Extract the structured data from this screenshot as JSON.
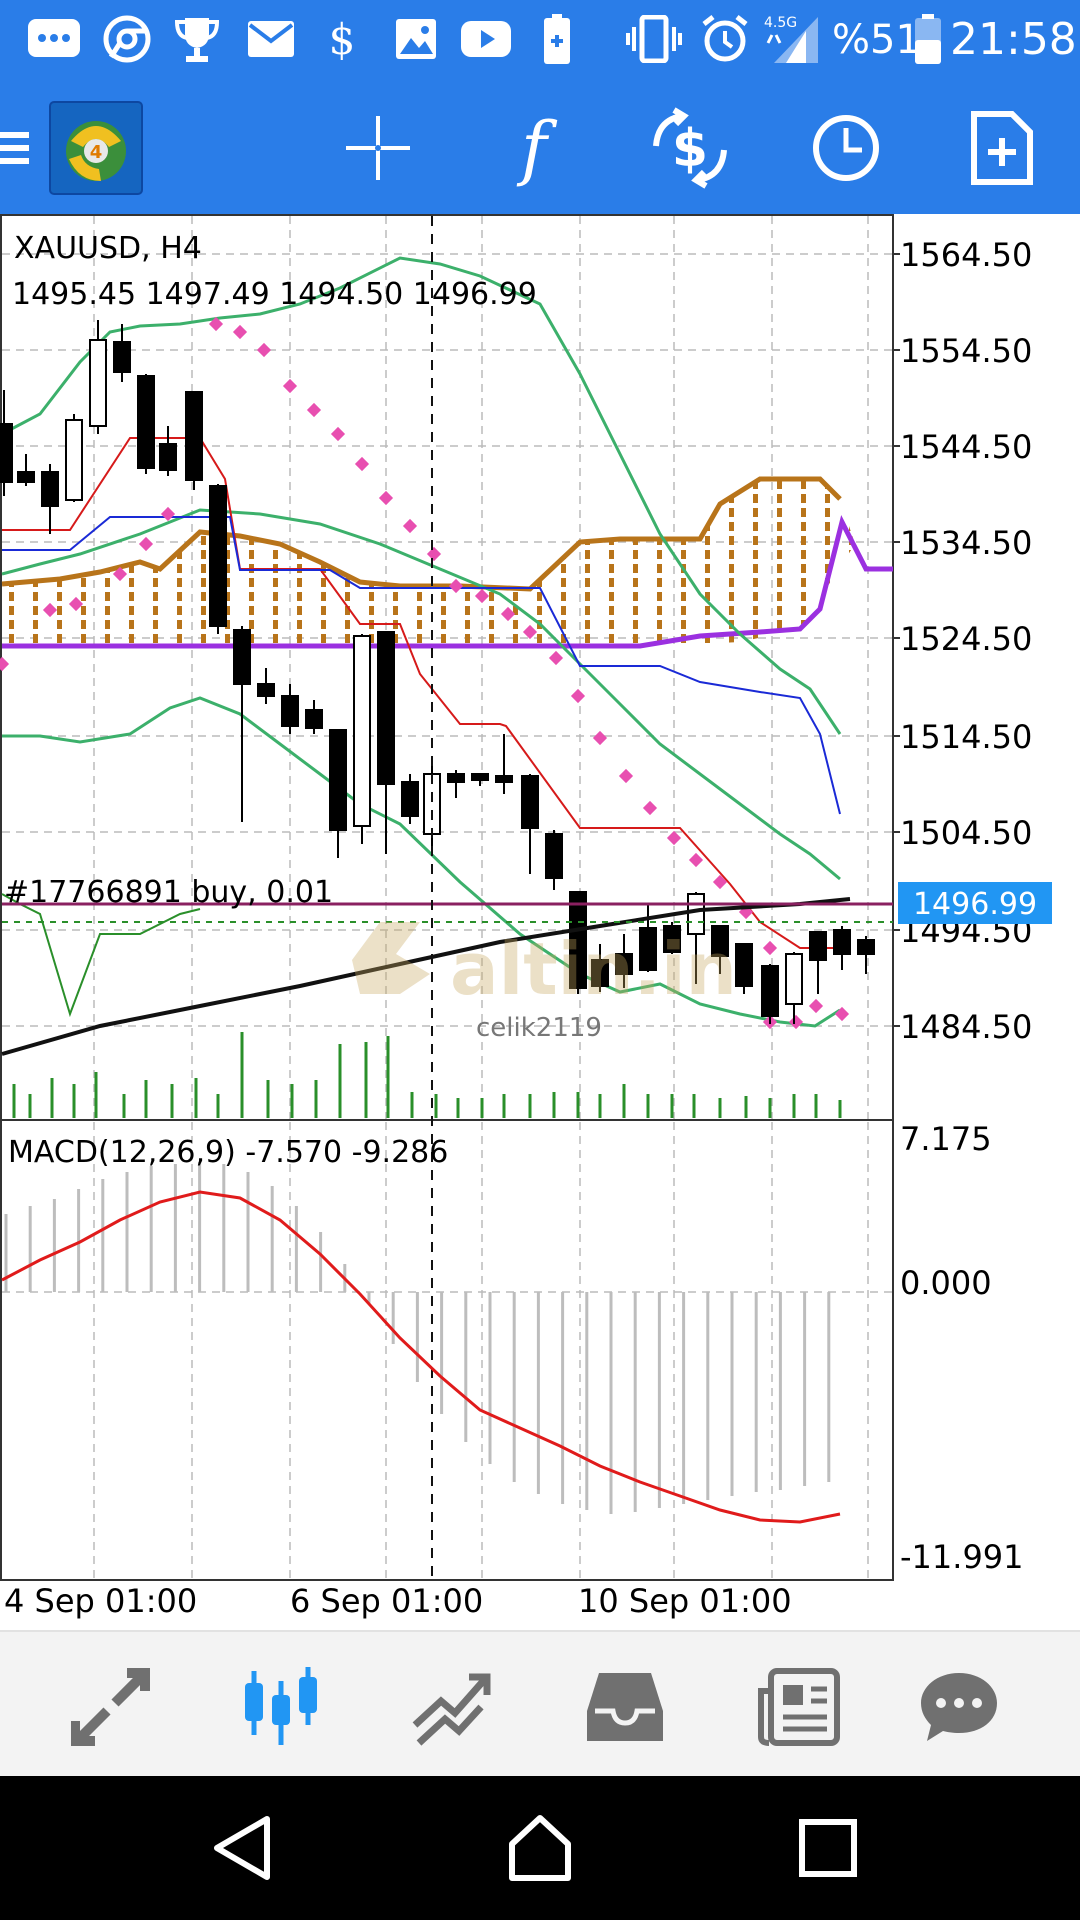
{
  "status_bar": {
    "network": "4.5G",
    "battery": "%51",
    "time": "21:58",
    "icons": [
      "sms-icon",
      "chrome-icon",
      "trophy-icon",
      "mail-icon",
      "dollar-icon",
      "gallery-icon",
      "youtube-icon",
      "battery-saver-icon",
      "vibrate-icon",
      "alarm-icon",
      "signal-icon",
      "battery-icon"
    ]
  },
  "toolbar": {
    "icons": [
      "menu-icon",
      "metatrader-logo-icon",
      "crosshair-icon",
      "indicators-icon",
      "trade-icon",
      "timeframe-icon",
      "new-order-icon"
    ],
    "logo_badge": "4"
  },
  "chart": {
    "symbol_timeframe": "XAUUSD, H4",
    "ohlc": "1495.45 1497.49 1494.50 1496.99",
    "price_axis": [
      "1564.50",
      "1554.50",
      "1544.50",
      "1534.50",
      "1524.50",
      "1514.50",
      "1504.50",
      "1494.50",
      "1484.50"
    ],
    "current_price": "1496.99",
    "order_label": "#17766891 buy, 0.01",
    "watermark": "altin.in",
    "watermark_user": "celik2119",
    "macd_label": "MACD(12,26,9) -7.570 -9.286",
    "macd_axis": [
      "7.175",
      "0.000",
      "-11.991"
    ],
    "time_axis": [
      "4 Sep 01:00",
      "6 Sep 01:00",
      "10 Sep 01:00"
    ],
    "colors": {
      "bollinger": "#3cb06b",
      "ichimoku_cloud": "#b8741a",
      "purple_line": "#9b30e0",
      "red_line": "#d61a1a",
      "blue_line": "#1a2ad6",
      "parabolic_sar": "#e84fb0",
      "price_badge": "#2196f3",
      "macd_signal": "#e01b1b"
    }
  },
  "bottom_nav": {
    "items": [
      "quotes-icon",
      "chart-icon",
      "trade-icon",
      "history-icon",
      "news-icon",
      "chat-icon"
    ],
    "active": "chart-icon"
  },
  "system_nav": {
    "buttons": [
      "back-icon",
      "home-icon",
      "recents-icon"
    ]
  }
}
